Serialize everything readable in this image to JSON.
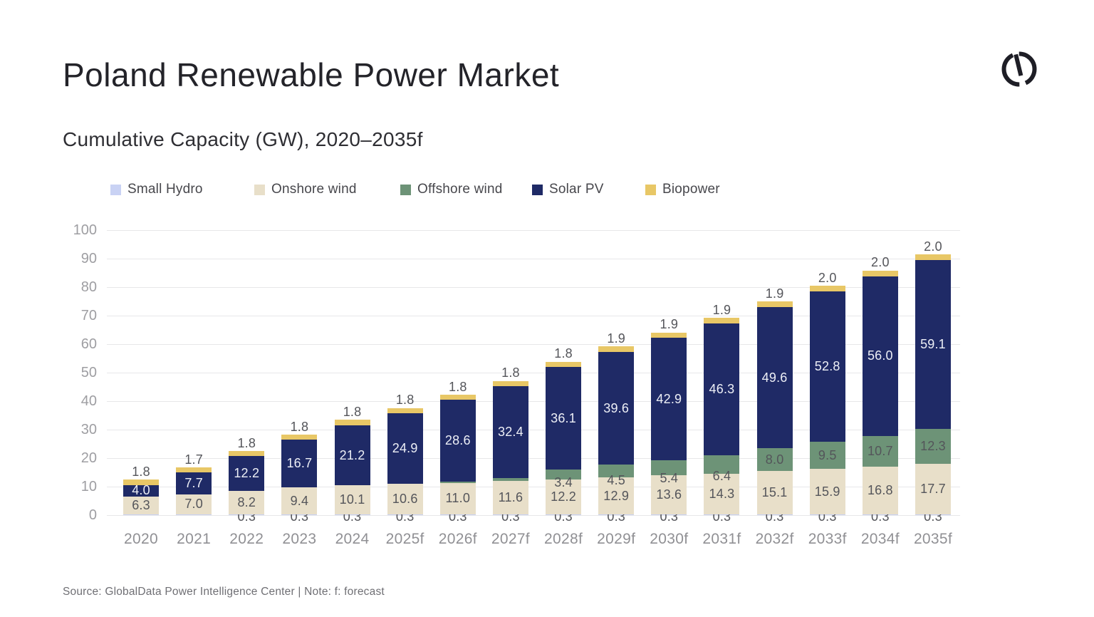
{
  "header": {
    "title": "Poland Renewable Power Market",
    "subtitle": "Cumulative Capacity (GW), 2020–2035f",
    "logo_icon": "globaldata-logo-icon",
    "logo_color": "#1e1e26"
  },
  "footer": {
    "source": "Source: GlobalData Power Intelligence Center | Note: f: forecast"
  },
  "chart_data": {
    "type": "bar",
    "stacked": true,
    "title": "Cumulative Capacity (GW), 2020–2035f",
    "xlabel": "",
    "ylabel": "GW",
    "ylim": [
      0,
      100
    ],
    "ytick_step": 10,
    "grid": true,
    "legend_position": "top",
    "categories": [
      "2020",
      "2021",
      "2022",
      "2023",
      "2024",
      "2025f",
      "2026f",
      "2027f",
      "2028f",
      "2029f",
      "2030f",
      "2031f",
      "2032f",
      "2033f",
      "2034f",
      "2035f"
    ],
    "series": [
      {
        "name": "Small Hydro",
        "color": "#c9d2f4",
        "label_position": "bottom-axis",
        "label_color": "#54555a",
        "values": [
          0.3,
          0.3,
          0.3,
          0.3,
          0.3,
          0.3,
          0.3,
          0.3,
          0.3,
          0.3,
          0.3,
          0.3,
          0.3,
          0.3,
          0.3,
          0.3
        ],
        "labels": [
          "",
          "",
          "0.3",
          "0.3",
          "0.3",
          "0.3",
          "0.3",
          "0.3",
          "0.3",
          "0.3",
          "0.3",
          "0.3",
          "0.3",
          "0.3",
          "0.3",
          "0.3"
        ]
      },
      {
        "name": "Onshore wind",
        "color": "#e8dfc9",
        "label_position": "inside",
        "label_color": "#54555a",
        "values": [
          6.3,
          7.0,
          8.2,
          9.4,
          10.1,
          10.6,
          11.0,
          11.6,
          12.2,
          12.9,
          13.6,
          14.3,
          15.1,
          15.9,
          16.8,
          17.7
        ],
        "labels": [
          "6.3",
          "7.0",
          "8.2",
          "9.4",
          "10.1",
          "10.6",
          "11.0",
          "11.6",
          "12.2",
          "12.9",
          "13.6",
          "14.3",
          "15.1",
          "15.9",
          "16.8",
          "17.7"
        ]
      },
      {
        "name": "Offshore wind",
        "color": "#6d9377",
        "label_position": "inside-or-below",
        "label_color": "#54555a",
        "values": [
          0,
          0,
          0,
          0,
          0,
          0,
          0.5,
          1.0,
          3.4,
          4.5,
          5.4,
          6.4,
          8.0,
          9.5,
          10.7,
          12.3
        ],
        "labels": [
          "",
          "",
          "",
          "",
          "",
          "",
          "",
          "",
          "3.4",
          "4.5",
          "5.4",
          "6.4",
          "8.0",
          "9.5",
          "10.7",
          "12.3"
        ]
      },
      {
        "name": "Solar PV",
        "color": "#1f2a66",
        "label_position": "inside",
        "label_color": "#edeff6",
        "values": [
          4.0,
          7.7,
          12.2,
          16.7,
          21.2,
          24.9,
          28.6,
          32.4,
          36.1,
          39.6,
          42.9,
          46.3,
          49.6,
          52.8,
          56.0,
          59.1
        ],
        "labels": [
          "4.0",
          "7.7",
          "12.2",
          "16.7",
          "21.2",
          "24.9",
          "28.6",
          "32.4",
          "36.1",
          "39.6",
          "42.9",
          "46.3",
          "49.6",
          "52.8",
          "56.0",
          "59.1"
        ]
      },
      {
        "name": "Biopower",
        "color": "#e8c766",
        "label_position": "above",
        "label_color": "#54555a",
        "values": [
          1.8,
          1.7,
          1.8,
          1.8,
          1.8,
          1.8,
          1.8,
          1.8,
          1.8,
          1.9,
          1.9,
          1.9,
          1.9,
          2.0,
          2.0,
          2.0
        ],
        "labels": [
          "1.8",
          "1.7",
          "1.8",
          "1.8",
          "1.8",
          "1.8",
          "1.8",
          "1.8",
          "1.8",
          "1.9",
          "1.9",
          "1.9",
          "1.9",
          "2.0",
          "2.0",
          "2.0"
        ]
      }
    ]
  }
}
